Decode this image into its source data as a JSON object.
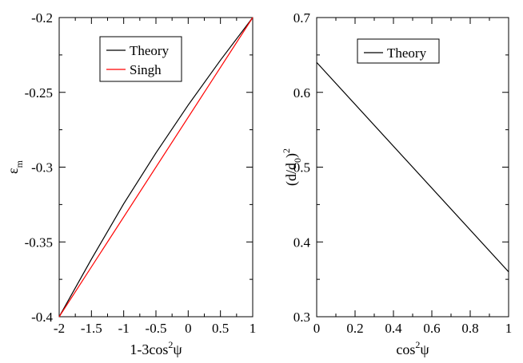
{
  "chart_data": [
    {
      "type": "line",
      "xlabel": "1-3cos²ψ",
      "xlabel_parts": {
        "base": "1-3cos",
        "sup": "2",
        "tail": "ψ"
      },
      "ylabel": "ε_m",
      "ylabel_parts": {
        "base": "ε",
        "sub": "m"
      },
      "xlim": [
        -2,
        1
      ],
      "ylim": [
        -0.4,
        -0.2
      ],
      "xticks": [
        -2,
        -1.5,
        -1,
        -0.5,
        0,
        0.5,
        1
      ],
      "xtick_labels": [
        "-2",
        "-1.5",
        "-1",
        "-0.5",
        "0",
        "0.5",
        "1"
      ],
      "yticks": [
        -0.4,
        -0.35,
        -0.3,
        -0.25,
        -0.2
      ],
      "ytick_labels": [
        "-0.4",
        "-0.35",
        "-0.3",
        "-0.25",
        "-0.2"
      ],
      "legend_position": "top-center",
      "series": [
        {
          "name": "Theory",
          "color": "#000000",
          "x": [
            -2,
            -1.5,
            -1,
            -0.5,
            0,
            0.5,
            1
          ],
          "y": [
            -0.4,
            -0.3615,
            -0.3245,
            -0.2905,
            -0.2585,
            -0.2285,
            -0.2
          ]
        },
        {
          "name": "Singh",
          "color": "#ff0000",
          "x": [
            -2,
            1
          ],
          "y": [
            -0.4,
            -0.2
          ]
        }
      ]
    },
    {
      "type": "line",
      "xlabel": "cos²ψ",
      "xlabel_parts": {
        "base": "cos",
        "sup": "2",
        "tail": "ψ"
      },
      "ylabel": "(d/d_0)²",
      "ylabel_parts": {
        "base": "(d/d",
        "sub": "0",
        "mid": ")",
        "sup": "2"
      },
      "xlim": [
        0,
        1
      ],
      "ylim": [
        0.3,
        0.7
      ],
      "xticks": [
        0,
        0.2,
        0.4,
        0.6,
        0.8,
        1
      ],
      "xtick_labels": [
        "0",
        "0.2",
        "0.4",
        "0.6",
        "0.8",
        "1"
      ],
      "yticks": [
        0.3,
        0.4,
        0.5,
        0.6,
        0.7
      ],
      "ytick_labels": [
        "0.3",
        "0.4",
        "0.5",
        "0.6",
        "0.7"
      ],
      "legend_position": "top-center",
      "series": [
        {
          "name": "Theory",
          "color": "#000000",
          "x": [
            0,
            1
          ],
          "y": [
            0.64,
            0.36
          ]
        }
      ]
    }
  ]
}
